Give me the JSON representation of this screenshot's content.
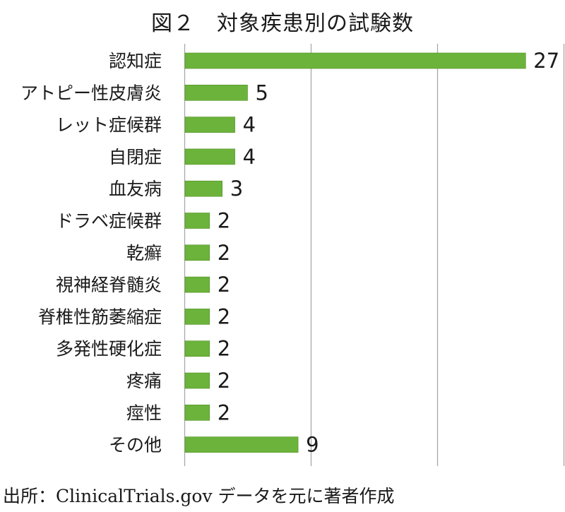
{
  "title": "図２　対象疾患別の試験数",
  "source": "出所：ClinicalTrials.gov データを元に著者作成",
  "colors": {
    "bar": "#6bb33a",
    "bar_edge": "#4f8f24",
    "grid": "#a8a8a8"
  },
  "chart_data": {
    "type": "bar",
    "orientation": "horizontal",
    "title": "図２　対象疾患別の試験数",
    "xlabel": "",
    "ylabel": "",
    "xlim": [
      0,
      30
    ],
    "grid": true,
    "categories": [
      "認知症",
      "アトピー性皮膚炎",
      "レット症候群",
      "自閉症",
      "血友病",
      "ドラベ症候群",
      "乾癬",
      "視神経脊髄炎",
      "脊椎性筋萎縮症",
      "多発性硬化症",
      "疼痛",
      "痙性",
      "その他"
    ],
    "values": [
      27,
      5,
      4,
      4,
      3,
      2,
      2,
      2,
      2,
      2,
      2,
      2,
      9
    ],
    "data_labels": [
      "27",
      "5",
      "4",
      "4",
      "3",
      "2",
      "2",
      "2",
      "2",
      "2",
      "2",
      "2",
      "9"
    ]
  }
}
